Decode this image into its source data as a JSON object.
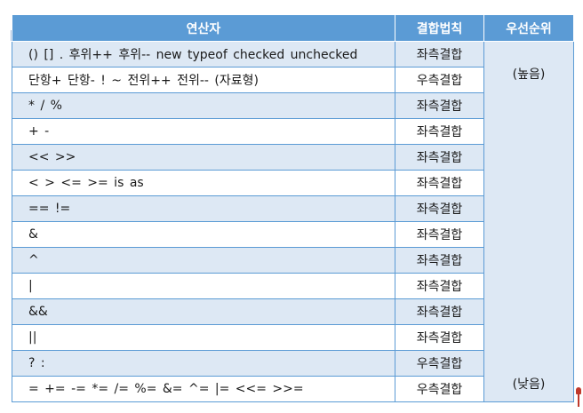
{
  "header": {
    "operator": "연산자",
    "associativity": "결합법칙",
    "precedence": "우선순위"
  },
  "precedence": {
    "high": "(높음)",
    "low": "(낮음)"
  },
  "rows": [
    {
      "operators": "() [] . 후위++ 후위-- new typeof checked unchecked",
      "assoc": "좌측결합"
    },
    {
      "operators": "단항+ 단항- ! ~ 전위++ 전위--  (자료형)",
      "assoc": "우측결합"
    },
    {
      "operators": "*   /   %",
      "assoc": "좌측결합"
    },
    {
      "operators": "+   -",
      "assoc": "좌측결합"
    },
    {
      "operators": "<<    >>",
      "assoc": "좌측결합"
    },
    {
      "operators": "<    >    <=    >=    is    as",
      "assoc": "좌측결합"
    },
    {
      "operators": "==    !=",
      "assoc": "좌측결합"
    },
    {
      "operators": "&",
      "assoc": "좌측결합"
    },
    {
      "operators": "^",
      "assoc": "좌측결합"
    },
    {
      "operators": "|",
      "assoc": "좌측결합"
    },
    {
      "operators": "&&",
      "assoc": "좌측결합"
    },
    {
      "operators": "||",
      "assoc": "좌측결합"
    },
    {
      "operators": "? :",
      "assoc": "우측결합"
    },
    {
      "operators": "=   +=   -=   *=   /=   %=   &=   ^=   |=   <<=   >>=",
      "assoc": "우측결합"
    }
  ]
}
